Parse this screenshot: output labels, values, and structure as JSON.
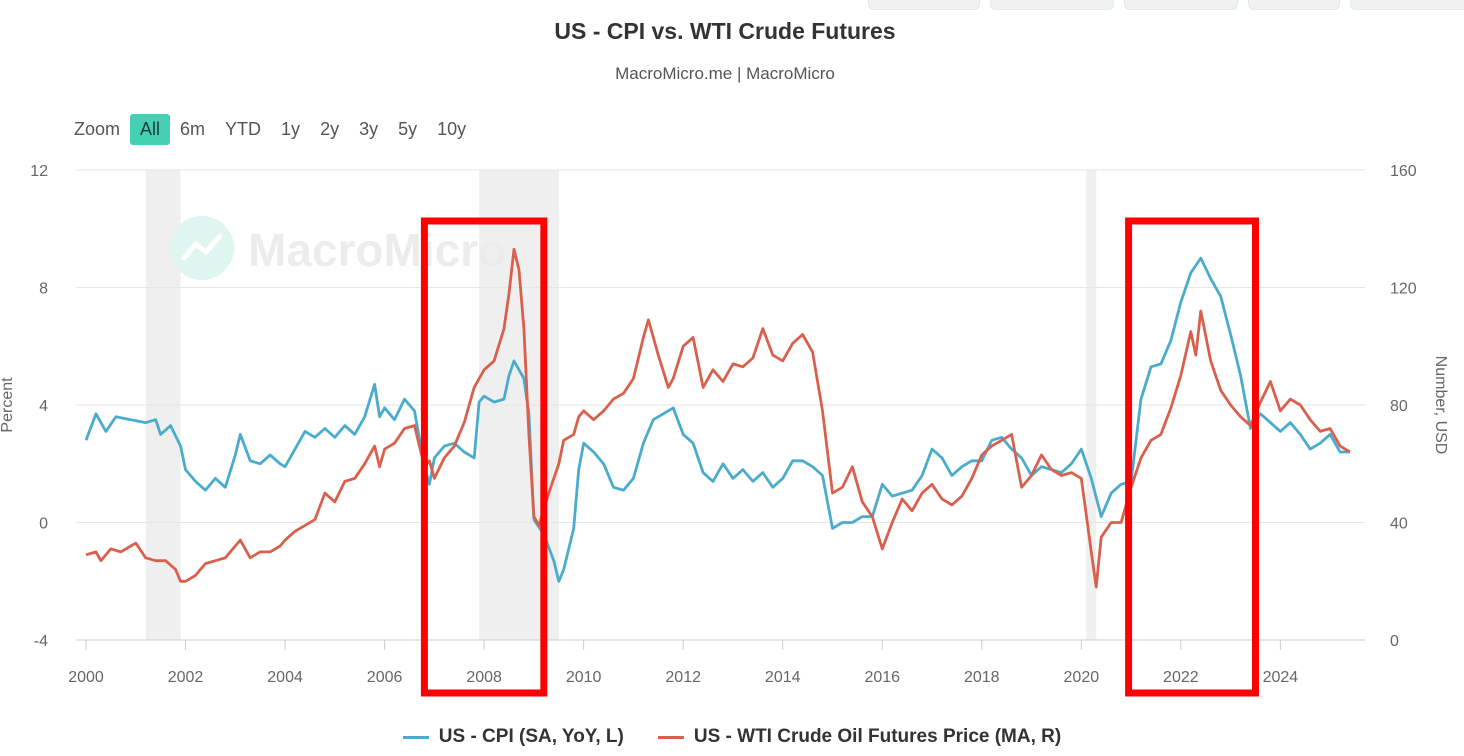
{
  "header": {
    "title": "US - CPI vs. WTI Crude Futures",
    "subtitle": "MacroMicro.me | MacroMicro"
  },
  "zoom": {
    "label": "Zoom",
    "options": [
      "All",
      "6m",
      "YTD",
      "1y",
      "2y",
      "3y",
      "5y",
      "10y"
    ],
    "selected": "All"
  },
  "watermark": "MacroMicro",
  "colors": {
    "cpi": "#4aaccc",
    "wti": "#d9604d",
    "recession": "#efefef",
    "highlight": "#ff0000",
    "zoom_active": "#45d0b4"
  },
  "chart_data": {
    "type": "line",
    "ylabel_left": "Percent",
    "ylabel_right": "Number, USD",
    "ylim_left": [
      -4,
      12
    ],
    "ylim_right": [
      0,
      160
    ],
    "xlim": [
      2000,
      2025.6
    ],
    "x_ticks": [
      "2000",
      "2002",
      "2004",
      "2006",
      "2008",
      "2010",
      "2012",
      "2014",
      "2016",
      "2018",
      "2020",
      "2022",
      "2024"
    ],
    "y_ticks_left": [
      "-4",
      "0",
      "4",
      "8",
      "12"
    ],
    "y_ticks_right": [
      "0",
      "40",
      "80",
      "120",
      "160"
    ],
    "grid": "horizontal",
    "legend_position": "bottom-center",
    "recession_periods": [
      [
        2001.2,
        2001.9
      ],
      [
        2007.9,
        2009.5
      ],
      [
        2020.1,
        2020.3
      ]
    ],
    "highlight_periods": [
      [
        2006.8,
        2009.2
      ],
      [
        2020.95,
        2023.5
      ]
    ],
    "series": [
      {
        "name": "US - CPI (SA, YoY, L)",
        "axis": "left",
        "points": [
          [
            2000.0,
            2.8
          ],
          [
            2000.2,
            3.7
          ],
          [
            2000.4,
            3.1
          ],
          [
            2000.6,
            3.6
          ],
          [
            2000.9,
            3.5
          ],
          [
            2001.2,
            3.4
          ],
          [
            2001.4,
            3.5
          ],
          [
            2001.5,
            3.0
          ],
          [
            2001.7,
            3.3
          ],
          [
            2001.9,
            2.6
          ],
          [
            2002.0,
            1.8
          ],
          [
            2002.2,
            1.4
          ],
          [
            2002.4,
            1.1
          ],
          [
            2002.6,
            1.5
          ],
          [
            2002.8,
            1.2
          ],
          [
            2003.0,
            2.3
          ],
          [
            2003.1,
            3.0
          ],
          [
            2003.3,
            2.1
          ],
          [
            2003.5,
            2.0
          ],
          [
            2003.7,
            2.3
          ],
          [
            2003.9,
            2.0
          ],
          [
            2004.0,
            1.9
          ],
          [
            2004.2,
            2.5
          ],
          [
            2004.4,
            3.1
          ],
          [
            2004.6,
            2.9
          ],
          [
            2004.8,
            3.2
          ],
          [
            2005.0,
            2.9
          ],
          [
            2005.2,
            3.3
          ],
          [
            2005.4,
            3.0
          ],
          [
            2005.6,
            3.6
          ],
          [
            2005.8,
            4.7
          ],
          [
            2005.9,
            3.6
          ],
          [
            2006.0,
            3.9
          ],
          [
            2006.2,
            3.5
          ],
          [
            2006.4,
            4.2
          ],
          [
            2006.6,
            3.8
          ],
          [
            2006.8,
            1.9
          ],
          [
            2006.9,
            1.3
          ],
          [
            2007.0,
            2.2
          ],
          [
            2007.2,
            2.6
          ],
          [
            2007.4,
            2.7
          ],
          [
            2007.6,
            2.4
          ],
          [
            2007.8,
            2.2
          ],
          [
            2007.9,
            4.1
          ],
          [
            2008.0,
            4.3
          ],
          [
            2008.2,
            4.1
          ],
          [
            2008.4,
            4.2
          ],
          [
            2008.5,
            5.0
          ],
          [
            2008.6,
            5.5
          ],
          [
            2008.8,
            4.9
          ],
          [
            2008.9,
            3.7
          ],
          [
            2009.0,
            0.1
          ],
          [
            2009.2,
            -0.4
          ],
          [
            2009.4,
            -1.3
          ],
          [
            2009.5,
            -2.0
          ],
          [
            2009.6,
            -1.6
          ],
          [
            2009.8,
            -0.2
          ],
          [
            2009.9,
            1.8
          ],
          [
            2010.0,
            2.7
          ],
          [
            2010.2,
            2.4
          ],
          [
            2010.4,
            2.0
          ],
          [
            2010.6,
            1.2
          ],
          [
            2010.8,
            1.1
          ],
          [
            2011.0,
            1.5
          ],
          [
            2011.2,
            2.7
          ],
          [
            2011.4,
            3.5
          ],
          [
            2011.6,
            3.7
          ],
          [
            2011.8,
            3.9
          ],
          [
            2012.0,
            3.0
          ],
          [
            2012.2,
            2.7
          ],
          [
            2012.4,
            1.7
          ],
          [
            2012.6,
            1.4
          ],
          [
            2012.8,
            2.0
          ],
          [
            2013.0,
            1.5
          ],
          [
            2013.2,
            1.8
          ],
          [
            2013.4,
            1.4
          ],
          [
            2013.6,
            1.7
          ],
          [
            2013.8,
            1.2
          ],
          [
            2014.0,
            1.5
          ],
          [
            2014.2,
            2.1
          ],
          [
            2014.4,
            2.1
          ],
          [
            2014.6,
            1.9
          ],
          [
            2014.8,
            1.6
          ],
          [
            2015.0,
            -0.2
          ],
          [
            2015.2,
            0.0
          ],
          [
            2015.4,
            0.0
          ],
          [
            2015.6,
            0.2
          ],
          [
            2015.8,
            0.2
          ],
          [
            2016.0,
            1.3
          ],
          [
            2016.2,
            0.9
          ],
          [
            2016.4,
            1.0
          ],
          [
            2016.6,
            1.1
          ],
          [
            2016.8,
            1.6
          ],
          [
            2017.0,
            2.5
          ],
          [
            2017.2,
            2.2
          ],
          [
            2017.4,
            1.6
          ],
          [
            2017.6,
            1.9
          ],
          [
            2017.8,
            2.1
          ],
          [
            2018.0,
            2.1
          ],
          [
            2018.2,
            2.8
          ],
          [
            2018.4,
            2.9
          ],
          [
            2018.6,
            2.5
          ],
          [
            2018.8,
            2.2
          ],
          [
            2019.0,
            1.6
          ],
          [
            2019.2,
            1.9
          ],
          [
            2019.4,
            1.8
          ],
          [
            2019.6,
            1.7
          ],
          [
            2019.8,
            2.0
          ],
          [
            2020.0,
            2.5
          ],
          [
            2020.2,
            1.5
          ],
          [
            2020.4,
            0.2
          ],
          [
            2020.6,
            1.0
          ],
          [
            2020.8,
            1.3
          ],
          [
            2021.0,
            1.4
          ],
          [
            2021.2,
            4.2
          ],
          [
            2021.4,
            5.3
          ],
          [
            2021.6,
            5.4
          ],
          [
            2021.8,
            6.2
          ],
          [
            2022.0,
            7.5
          ],
          [
            2022.2,
            8.5
          ],
          [
            2022.4,
            9.0
          ],
          [
            2022.6,
            8.3
          ],
          [
            2022.8,
            7.7
          ],
          [
            2023.0,
            6.4
          ],
          [
            2023.2,
            5.0
          ],
          [
            2023.4,
            3.2
          ],
          [
            2023.6,
            3.7
          ],
          [
            2023.8,
            3.4
          ],
          [
            2024.0,
            3.1
          ],
          [
            2024.2,
            3.4
          ],
          [
            2024.4,
            3.0
          ],
          [
            2024.6,
            2.5
          ],
          [
            2024.8,
            2.7
          ],
          [
            2025.0,
            3.0
          ],
          [
            2025.2,
            2.4
          ],
          [
            2025.4,
            2.4
          ]
        ]
      },
      {
        "name": "US - WTI Crude Oil Futures Price (MA, R)",
        "axis": "right",
        "points": [
          [
            2000.0,
            29
          ],
          [
            2000.2,
            30
          ],
          [
            2000.3,
            27
          ],
          [
            2000.5,
            31
          ],
          [
            2000.7,
            30
          ],
          [
            2000.9,
            32
          ],
          [
            2001.0,
            33
          ],
          [
            2001.2,
            28
          ],
          [
            2001.4,
            27
          ],
          [
            2001.6,
            27
          ],
          [
            2001.8,
            24
          ],
          [
            2001.9,
            20
          ],
          [
            2002.0,
            20
          ],
          [
            2002.2,
            22
          ],
          [
            2002.4,
            26
          ],
          [
            2002.6,
            27
          ],
          [
            2002.8,
            28
          ],
          [
            2003.0,
            32
          ],
          [
            2003.1,
            34
          ],
          [
            2003.3,
            28
          ],
          [
            2003.5,
            30
          ],
          [
            2003.7,
            30
          ],
          [
            2003.9,
            32
          ],
          [
            2004.0,
            34
          ],
          [
            2004.2,
            37
          ],
          [
            2004.4,
            39
          ],
          [
            2004.6,
            41
          ],
          [
            2004.8,
            50
          ],
          [
            2005.0,
            47
          ],
          [
            2005.2,
            54
          ],
          [
            2005.4,
            55
          ],
          [
            2005.6,
            60
          ],
          [
            2005.8,
            66
          ],
          [
            2005.9,
            59
          ],
          [
            2006.0,
            65
          ],
          [
            2006.2,
            67
          ],
          [
            2006.4,
            72
          ],
          [
            2006.6,
            73
          ],
          [
            2006.8,
            59
          ],
          [
            2006.9,
            61
          ],
          [
            2007.0,
            55
          ],
          [
            2007.2,
            62
          ],
          [
            2007.4,
            66
          ],
          [
            2007.6,
            74
          ],
          [
            2007.8,
            86
          ],
          [
            2008.0,
            92
          ],
          [
            2008.2,
            95
          ],
          [
            2008.4,
            106
          ],
          [
            2008.5,
            118
          ],
          [
            2008.6,
            133
          ],
          [
            2008.7,
            126
          ],
          [
            2008.8,
            106
          ],
          [
            2008.9,
            70
          ],
          [
            2009.0,
            42
          ],
          [
            2009.1,
            39
          ],
          [
            2009.3,
            50
          ],
          [
            2009.5,
            60
          ],
          [
            2009.6,
            68
          ],
          [
            2009.8,
            70
          ],
          [
            2009.9,
            76
          ],
          [
            2010.0,
            78
          ],
          [
            2010.2,
            75
          ],
          [
            2010.4,
            78
          ],
          [
            2010.6,
            82
          ],
          [
            2010.8,
            84
          ],
          [
            2011.0,
            89
          ],
          [
            2011.2,
            103
          ],
          [
            2011.3,
            109
          ],
          [
            2011.5,
            97
          ],
          [
            2011.7,
            86
          ],
          [
            2011.8,
            89
          ],
          [
            2012.0,
            100
          ],
          [
            2012.2,
            103
          ],
          [
            2012.4,
            86
          ],
          [
            2012.6,
            92
          ],
          [
            2012.8,
            88
          ],
          [
            2013.0,
            94
          ],
          [
            2013.2,
            93
          ],
          [
            2013.4,
            96
          ],
          [
            2013.6,
            106
          ],
          [
            2013.8,
            97
          ],
          [
            2014.0,
            95
          ],
          [
            2014.2,
            101
          ],
          [
            2014.4,
            104
          ],
          [
            2014.6,
            98
          ],
          [
            2014.8,
            78
          ],
          [
            2015.0,
            50
          ],
          [
            2015.2,
            52
          ],
          [
            2015.4,
            59
          ],
          [
            2015.6,
            47
          ],
          [
            2015.8,
            42
          ],
          [
            2016.0,
            31
          ],
          [
            2016.2,
            40
          ],
          [
            2016.4,
            48
          ],
          [
            2016.6,
            44
          ],
          [
            2016.8,
            50
          ],
          [
            2017.0,
            53
          ],
          [
            2017.2,
            48
          ],
          [
            2017.4,
            46
          ],
          [
            2017.6,
            49
          ],
          [
            2017.8,
            55
          ],
          [
            2018.0,
            63
          ],
          [
            2018.2,
            66
          ],
          [
            2018.4,
            68
          ],
          [
            2018.6,
            70
          ],
          [
            2018.8,
            52
          ],
          [
            2019.0,
            56
          ],
          [
            2019.2,
            63
          ],
          [
            2019.4,
            58
          ],
          [
            2019.6,
            56
          ],
          [
            2019.8,
            57
          ],
          [
            2020.0,
            55
          ],
          [
            2020.2,
            30
          ],
          [
            2020.3,
            18
          ],
          [
            2020.4,
            35
          ],
          [
            2020.6,
            40
          ],
          [
            2020.8,
            40
          ],
          [
            2021.0,
            52
          ],
          [
            2021.2,
            62
          ],
          [
            2021.4,
            68
          ],
          [
            2021.6,
            70
          ],
          [
            2021.8,
            79
          ],
          [
            2022.0,
            90
          ],
          [
            2022.2,
            105
          ],
          [
            2022.3,
            97
          ],
          [
            2022.4,
            112
          ],
          [
            2022.6,
            95
          ],
          [
            2022.8,
            85
          ],
          [
            2023.0,
            80
          ],
          [
            2023.2,
            76
          ],
          [
            2023.4,
            73
          ],
          [
            2023.6,
            81
          ],
          [
            2023.8,
            88
          ],
          [
            2024.0,
            78
          ],
          [
            2024.2,
            82
          ],
          [
            2024.4,
            80
          ],
          [
            2024.6,
            75
          ],
          [
            2024.8,
            71
          ],
          [
            2025.0,
            72
          ],
          [
            2025.2,
            66
          ],
          [
            2025.4,
            64
          ]
        ]
      }
    ]
  }
}
